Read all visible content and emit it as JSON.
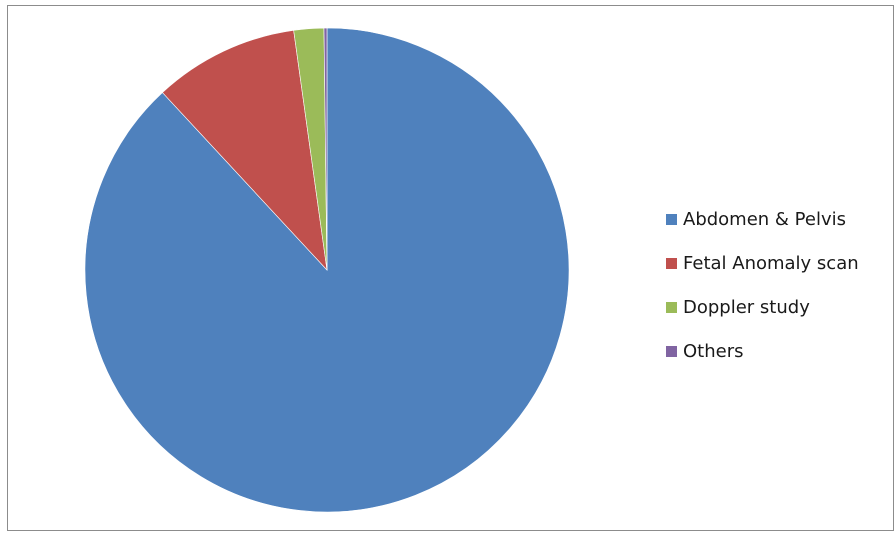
{
  "chart_data": {
    "type": "pie",
    "title": "",
    "categories": [
      "Abdomen & Pelvis",
      "Fetal Anomaly scan",
      "Doppler study",
      "Others"
    ],
    "values": [
      88.1,
      9.7,
      2.0,
      0.2
    ],
    "colors": [
      "#4f81bd",
      "#c0504d",
      "#9bbb59",
      "#8064a2"
    ],
    "start_angle_deg": 0,
    "direction": "clockwise",
    "legend_position": "right"
  }
}
